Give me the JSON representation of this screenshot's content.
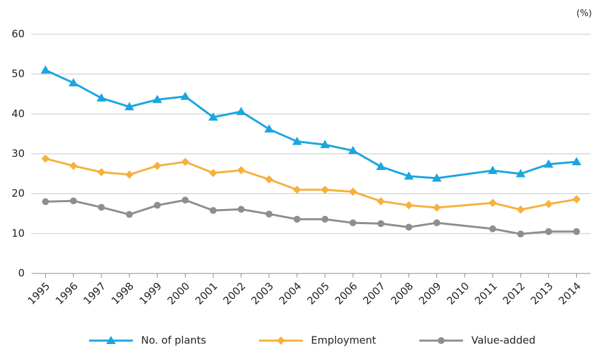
{
  "chart_data": {
    "type": "line",
    "unit": "(%)",
    "x": [
      1995,
      1996,
      1997,
      1998,
      1999,
      2000,
      2001,
      2002,
      2003,
      2004,
      2005,
      2006,
      2007,
      2008,
      2009,
      2011,
      2012,
      2013,
      2014
    ],
    "xlim": [
      1994.5,
      2014.5
    ],
    "xticks": [
      1995,
      1996,
      1997,
      1998,
      1999,
      2000,
      2001,
      2002,
      2003,
      2004,
      2005,
      2006,
      2007,
      2008,
      2009,
      2010,
      2011,
      2012,
      2013,
      2014
    ],
    "ylim": [
      0,
      60
    ],
    "yticks": [
      0,
      10,
      20,
      30,
      40,
      50,
      60
    ],
    "grid": true,
    "legend": "bottom",
    "series": [
      {
        "name": "No. of plants",
        "color": "#1ba6df",
        "marker": "triangle",
        "values": [
          51,
          47.8,
          44,
          41.8,
          43.6,
          44.4,
          39.2,
          40.6,
          36.2,
          33.1,
          32.3,
          30.8,
          26.8,
          24.4,
          23.9,
          25.8,
          25,
          27.4,
          28
        ]
      },
      {
        "name": "Employment",
        "color": "#f6b13d",
        "marker": "diamond",
        "values": [
          28.8,
          27,
          25.4,
          24.8,
          27,
          28,
          25.2,
          25.9,
          23.6,
          21,
          21,
          20.5,
          18.1,
          17.1,
          16.5,
          17.7,
          16,
          17.4,
          18.6
        ]
      },
      {
        "name": "Value-added",
        "color": "#8e8e8e",
        "marker": "circle",
        "values": [
          18,
          18.2,
          16.6,
          14.8,
          17.1,
          18.4,
          15.8,
          16.1,
          14.9,
          13.6,
          13.6,
          12.7,
          12.5,
          11.6,
          12.7,
          11.2,
          9.9,
          10.5,
          10.5
        ]
      }
    ]
  }
}
